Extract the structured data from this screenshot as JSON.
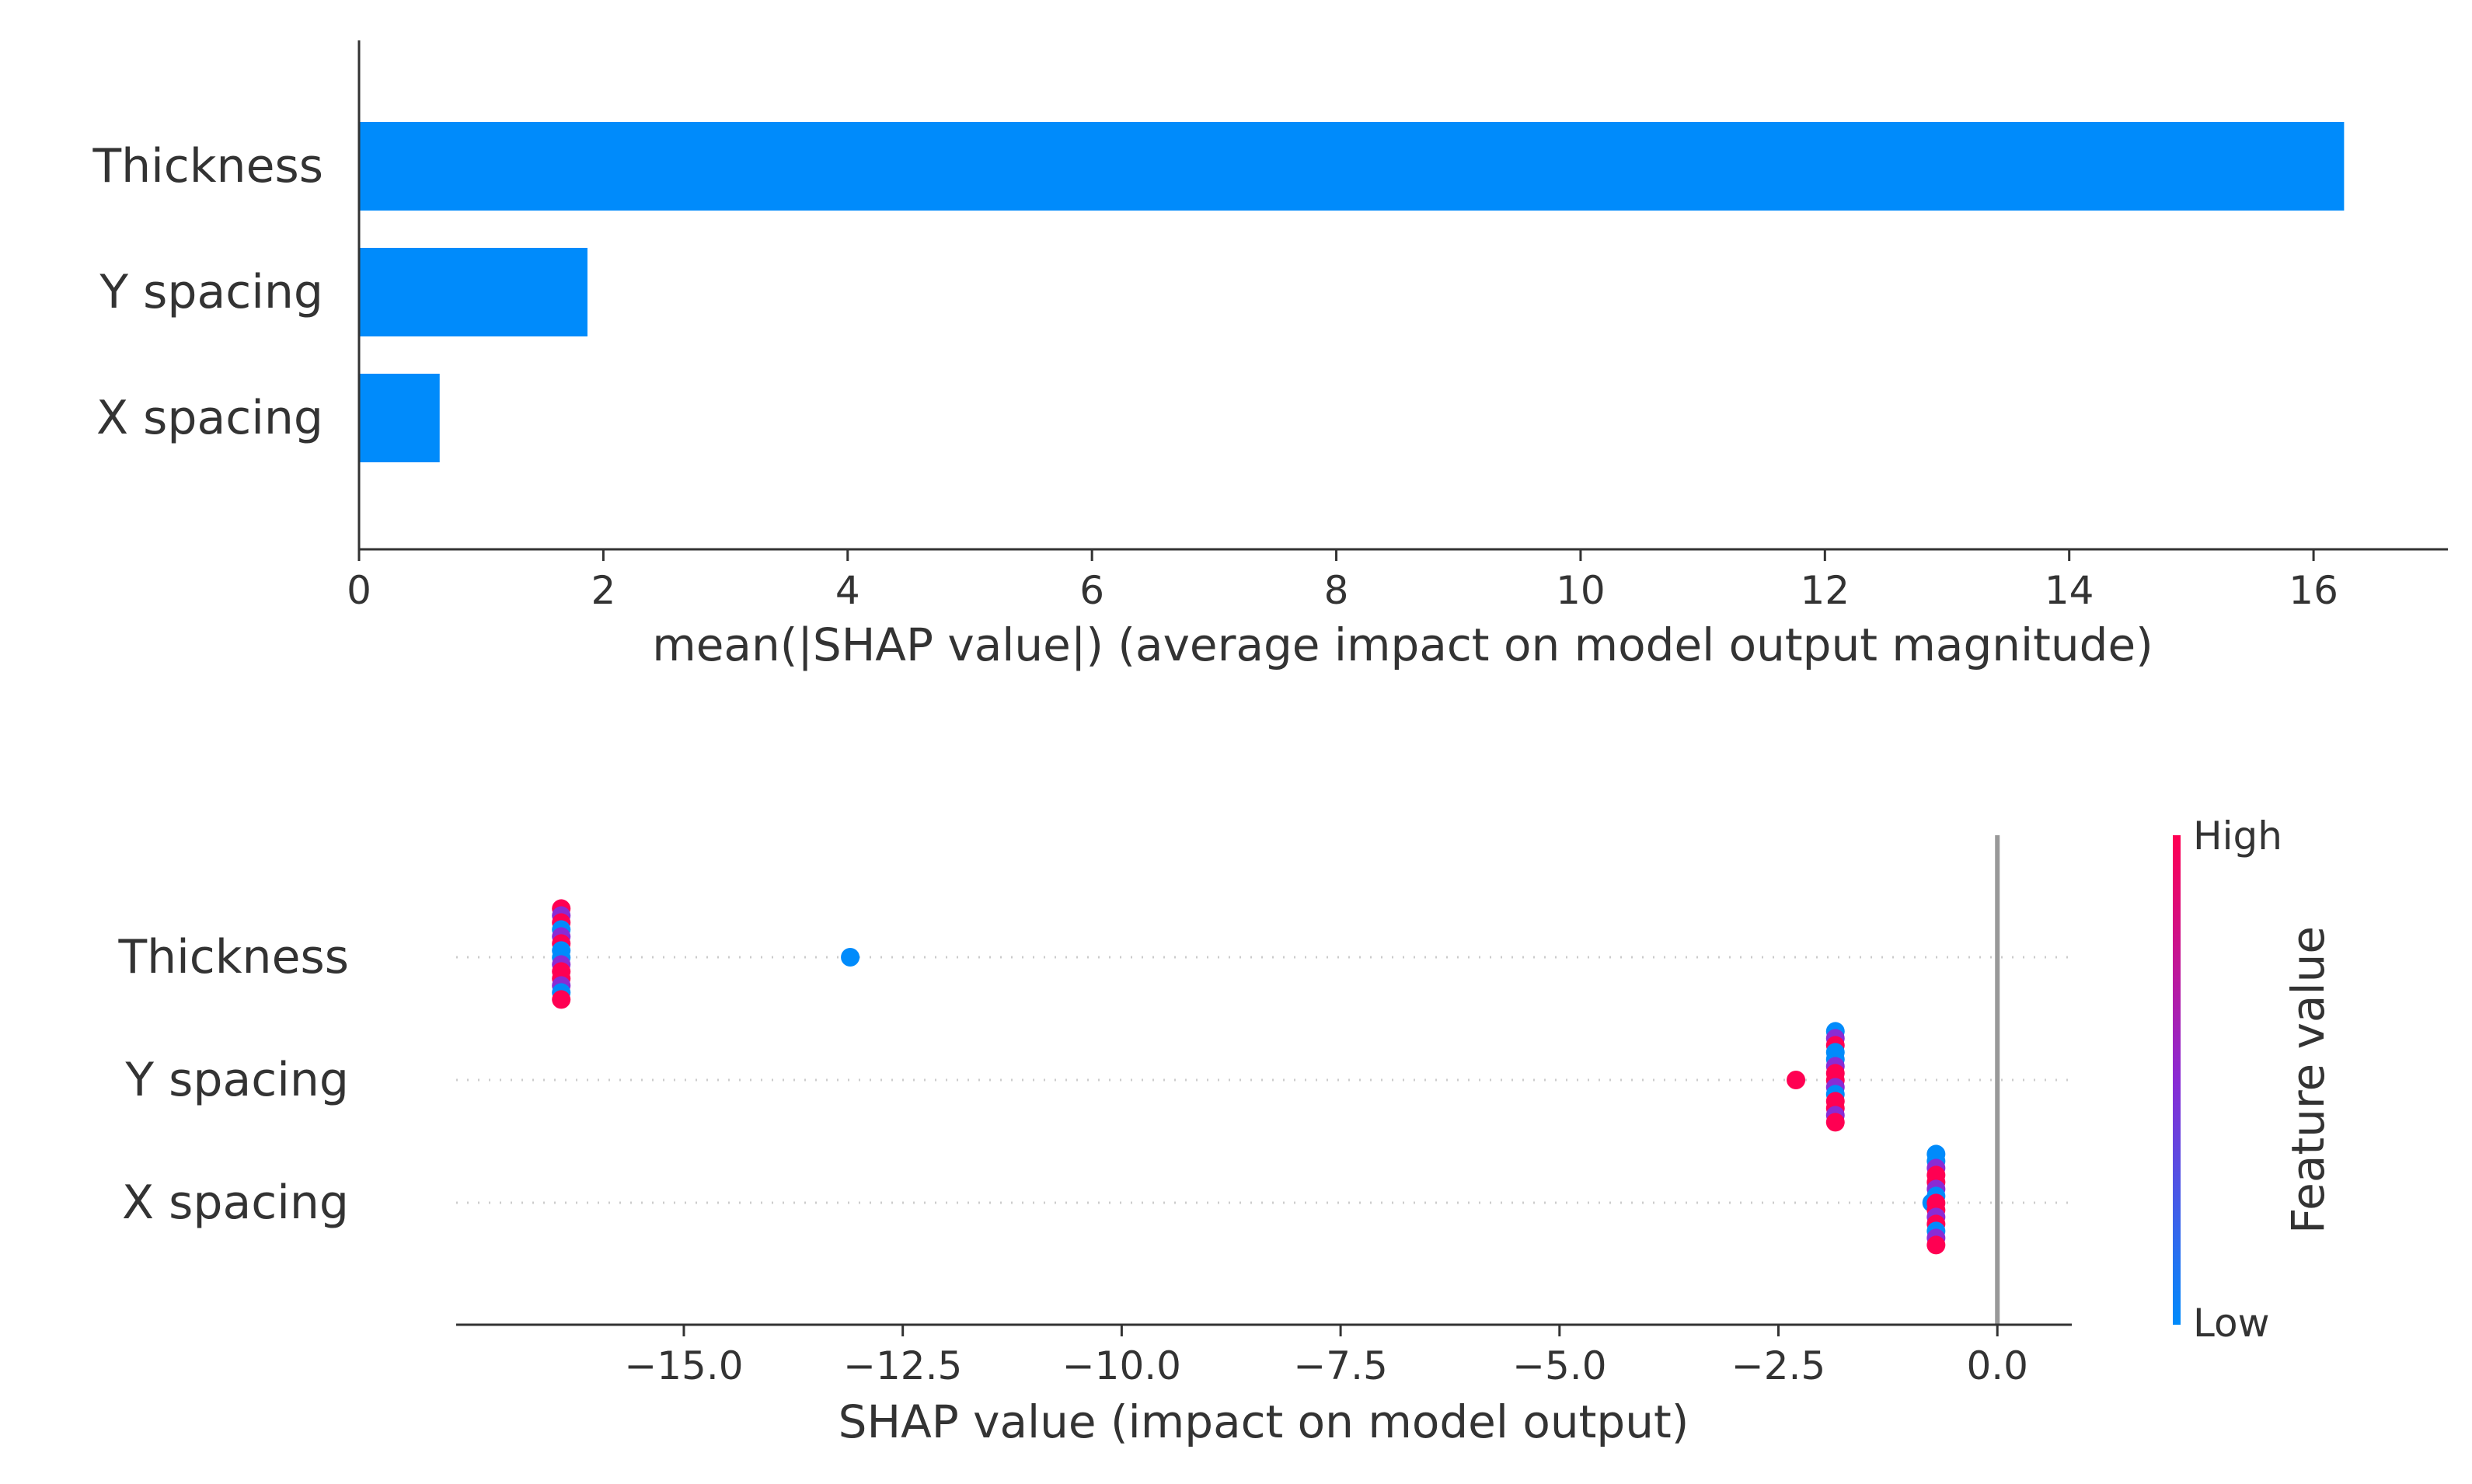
{
  "colors": {
    "bar": "#008bfb",
    "high": "#ff0052",
    "mid": "#8a2bd4",
    "low": "#008bfb",
    "axis": "#333333",
    "zero_line": "#999999",
    "grid_dots": "#cccccc"
  },
  "chart_data": [
    {
      "type": "bar",
      "orientation": "horizontal",
      "categories": [
        "Thickness",
        "Y spacing",
        "X spacing"
      ],
      "values": [
        16.25,
        1.87,
        0.66
      ],
      "xlabel": "mean(|SHAP value|) (average impact on model output magnitude)",
      "ylabel": "",
      "xlim": [
        0,
        17.1
      ],
      "xticks": [
        0,
        2,
        4,
        6,
        8,
        10,
        12,
        14,
        16
      ]
    },
    {
      "type": "scatter",
      "subtype": "beeswarm",
      "categories": [
        "Thickness",
        "Y spacing",
        "X spacing"
      ],
      "series": [
        {
          "name": "Thickness",
          "points": [
            {
              "x": -16.4,
              "spread": [
                -0.45,
                0.45
              ],
              "color": "mixed"
            },
            {
              "x": -13.1,
              "spread": [
                0,
                0
              ],
              "color": "low"
            }
          ]
        },
        {
          "name": "Y spacing",
          "points": [
            {
              "x": -2.3,
              "spread": [
                0,
                0
              ],
              "color": "high"
            },
            {
              "x": -1.85,
              "spread": [
                -0.45,
                0.45
              ],
              "color": "mixed"
            }
          ]
        },
        {
          "name": "X spacing",
          "points": [
            {
              "x": -0.75,
              "spread": [
                0,
                0
              ],
              "color": "low"
            },
            {
              "x": -0.7,
              "spread": [
                -0.45,
                0.45
              ],
              "color": "mixed"
            }
          ]
        }
      ],
      "xlabel": "SHAP value (impact on model output)",
      "xlim": [
        -17.6,
        0.85
      ],
      "xticks": [
        -15.0,
        -12.5,
        -10.0,
        -7.5,
        -5.0,
        -2.5,
        0.0
      ],
      "xtick_labels": [
        "−15.0",
        "−12.5",
        "−10.0",
        "−7.5",
        "−5.0",
        "−2.5",
        "0.0"
      ],
      "colorbar": {
        "label": "Feature value",
        "high_label": "High",
        "low_label": "Low"
      }
    }
  ]
}
